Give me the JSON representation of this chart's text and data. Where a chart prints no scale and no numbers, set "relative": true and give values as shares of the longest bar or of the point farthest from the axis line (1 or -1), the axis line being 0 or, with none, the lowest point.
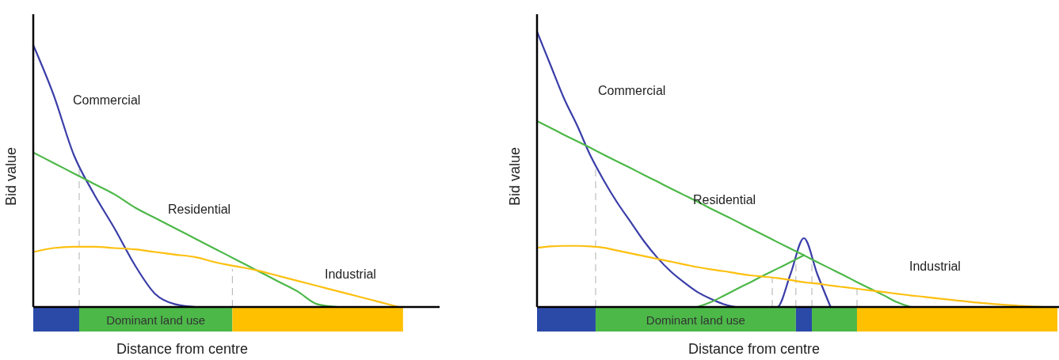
{
  "chart_data": [
    {
      "type": "line",
      "relative": true,
      "xlabel": "Distance from centre",
      "ylabel": "Bid value",
      "annotations": [
        "Dominant land use"
      ],
      "categories": [
        null,
        null,
        null,
        null,
        null,
        null,
        null,
        null,
        null,
        null,
        null,
        null,
        null,
        null,
        null,
        null,
        null,
        null,
        null,
        null,
        null
      ],
      "series": [
        {
          "name": "Commercial",
          "color": "#3a3ea8",
          "values": [
            1.0,
            0.81,
            0.58,
            0.43,
            0.3,
            0.16,
            0.05,
            0.01,
            0,
            null,
            null,
            null,
            null,
            null,
            null,
            null,
            null,
            null,
            null,
            null,
            null
          ]
        },
        {
          "name": "Residential",
          "color": "#4cb848",
          "values": [
            0.59,
            0.55,
            0.51,
            0.47,
            0.43,
            0.38,
            0.34,
            0.3,
            0.26,
            0.22,
            0.18,
            0.14,
            0.1,
            0.06,
            0.01,
            0,
            null,
            null,
            null,
            null,
            null
          ]
        },
        {
          "name": "Industrial",
          "color": "#fdc010",
          "values": [
            0.21,
            0.225,
            0.23,
            0.23,
            0.225,
            0.22,
            0.21,
            0.2,
            0.19,
            0.17,
            0.155,
            0.14,
            0.12,
            0.1,
            0.08,
            0.06,
            0.04,
            0.02,
            0,
            null,
            null
          ]
        }
      ]
    },
    {
      "type": "line",
      "relative": true,
      "xlabel": "Distance from centre",
      "ylabel": "Bid value",
      "annotations": [
        "Dominant land use"
      ],
      "categories": [
        null,
        null,
        null,
        null,
        null,
        null,
        null,
        null,
        null,
        null,
        null,
        null,
        null,
        null,
        null,
        null,
        null,
        null,
        null,
        null,
        null,
        null,
        null,
        null,
        null,
        null,
        null,
        null,
        null,
        null,
        null,
        null,
        null,
        null,
        null,
        null,
        null,
        null,
        null,
        null
      ],
      "series": [
        {
          "name": "Commercial",
          "color": "#3a3ea8",
          "values": [
            1.0,
            0.88,
            0.76,
            0.66,
            0.55,
            0.46,
            0.38,
            0.31,
            0.24,
            0.18,
            0.13,
            0.09,
            0.055,
            0.03,
            0.01,
            0,
            0,
            0,
            0,
            0.12,
            0.25,
            0.12,
            0,
            null,
            null,
            null,
            null,
            null,
            null,
            null,
            null,
            null,
            null,
            null,
            null,
            null,
            null,
            null,
            null,
            null
          ]
        },
        {
          "name": "Residential",
          "color": "#4cb848",
          "values": [
            0.675,
            0.651,
            0.626,
            0.602,
            0.578,
            0.553,
            0.529,
            0.505,
            0.48,
            0.456,
            0.431,
            0.407,
            0.383,
            0.358,
            0.334,
            0.31,
            0.285,
            0.261,
            0.236,
            0.212,
            0.188,
            0.163,
            0.139,
            0.115,
            0.09,
            0.066,
            0.042,
            0.017,
            0,
            null,
            null,
            null,
            null,
            null,
            null,
            null,
            null,
            null,
            null,
            null
          ]
        },
        {
          "color": "#4cb848",
          "values": [
            null,
            null,
            null,
            null,
            null,
            null,
            null,
            null,
            null,
            null,
            null,
            null,
            0,
            0.017,
            0.041,
            0.066,
            0.09,
            0.115,
            0.139,
            0.163,
            0.188,
            null,
            null,
            null,
            null,
            null,
            null,
            null,
            null,
            null,
            null,
            null,
            null,
            null,
            null,
            null,
            null,
            null,
            null,
            null
          ]
        },
        {
          "name": "Industrial",
          "color": "#fdc010",
          "values": [
            0.215,
            0.22,
            0.222,
            0.222,
            0.22,
            0.215,
            0.205,
            0.195,
            0.185,
            0.175,
            0.165,
            0.155,
            0.145,
            0.137,
            0.13,
            0.122,
            0.115,
            0.11,
            0.105,
            0.098,
            0.09,
            0.085,
            0.078,
            0.072,
            0.066,
            0.06,
            0.054,
            0.048,
            0.042,
            0.037,
            0.031,
            0.026,
            0.021,
            0.016,
            0.012,
            0.008,
            0.005,
            0.002,
            0,
            null
          ]
        }
      ]
    }
  ]
}
